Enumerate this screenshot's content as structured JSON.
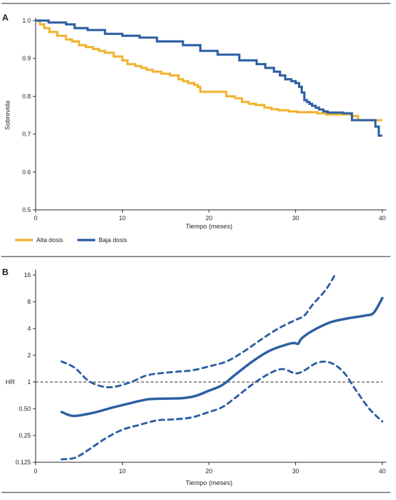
{
  "panels": {
    "a": {
      "letter": "A"
    },
    "b": {
      "letter": "B"
    }
  },
  "chart_data": [
    {
      "type": "line",
      "panel": "A",
      "xlabel": "Tiempo (meses)",
      "ylabel": "Sobrevida",
      "xlim": [
        0,
        40
      ],
      "ylim": [
        0.5,
        1.0
      ],
      "xticks": [
        0,
        10,
        20,
        30,
        40
      ],
      "yticks": [
        {
          "value": 1.0,
          "label": "1.0"
        },
        {
          "value": 0.9,
          "label": "0.9"
        },
        {
          "value": 0.8,
          "label": "0.8"
        },
        {
          "value": 0.7,
          "label": "0.7"
        },
        {
          "value": 0.6,
          "label": "0.6"
        },
        {
          "value": 0.5,
          "label": "0.5"
        }
      ],
      "grid": false,
      "legend_position": "bottom-left",
      "series": [
        {
          "name": "Alta dosis",
          "color": "#f0b432",
          "step": true,
          "x": [
            0,
            0.5,
            1,
            1.6,
            2.5,
            3.5,
            4.2,
            5,
            5.8,
            6.6,
            7.3,
            8,
            9,
            10,
            10.6,
            11.5,
            12.2,
            12.8,
            13.5,
            14.5,
            15.5,
            16.5,
            17,
            17.6,
            18.3,
            18.7,
            19,
            21,
            22,
            23,
            23.8,
            24.6,
            25.4,
            26.4,
            27.2,
            28,
            29.2,
            30.2,
            31.5,
            32.5,
            33.5,
            35,
            36.5,
            37.2,
            40
          ],
          "y": [
            1.0,
            0.99,
            0.98,
            0.97,
            0.96,
            0.95,
            0.945,
            0.935,
            0.93,
            0.925,
            0.92,
            0.915,
            0.905,
            0.895,
            0.885,
            0.88,
            0.875,
            0.87,
            0.865,
            0.86,
            0.855,
            0.845,
            0.84,
            0.835,
            0.83,
            0.825,
            0.812,
            0.812,
            0.8,
            0.795,
            0.785,
            0.78,
            0.777,
            0.77,
            0.766,
            0.763,
            0.76,
            0.758,
            0.758,
            0.755,
            0.752,
            0.752,
            0.748,
            0.737,
            0.737
          ]
        },
        {
          "name": "Baja dosis",
          "color": "#2d5fa4",
          "step": true,
          "x": [
            0,
            1.5,
            3.5,
            4.5,
            6,
            8,
            10,
            12,
            14,
            17,
            19,
            21,
            23.5,
            25.5,
            26.5,
            27.5,
            28.2,
            28.8,
            29.5,
            30,
            30.4,
            30.7,
            31,
            31.3,
            31.6,
            31.9,
            32.3,
            32.7,
            33.2,
            33.7,
            35.5,
            36.5,
            38.5,
            39.2,
            39.6,
            40
          ],
          "y": [
            1.0,
            0.995,
            0.99,
            0.98,
            0.975,
            0.965,
            0.96,
            0.955,
            0.945,
            0.935,
            0.92,
            0.91,
            0.895,
            0.885,
            0.875,
            0.865,
            0.855,
            0.845,
            0.84,
            0.835,
            0.825,
            0.81,
            0.79,
            0.785,
            0.78,
            0.775,
            0.77,
            0.765,
            0.76,
            0.757,
            0.755,
            0.737,
            0.737,
            0.72,
            0.696,
            0.696
          ]
        }
      ]
    },
    {
      "type": "line",
      "panel": "B",
      "xlabel": "Tiempo (meses)",
      "ylabel": "HR",
      "xlim": [
        0,
        40
      ],
      "ylim": [
        0.125,
        16
      ],
      "yscale": "log2",
      "xticks": [
        0,
        10,
        20,
        30,
        40
      ],
      "yticks": [
        {
          "value": 16,
          "label": "16"
        },
        {
          "value": 8,
          "label": "8"
        },
        {
          "value": 4,
          "label": "4"
        },
        {
          "value": 2,
          "label": "2"
        },
        {
          "value": 1,
          "label": "1"
        },
        {
          "value": 0.5,
          "label": "0.50"
        },
        {
          "value": 0.25,
          "label": "0.25"
        },
        {
          "value": 0.125,
          "label": "0.125"
        }
      ],
      "reference_line": {
        "y": 1,
        "style": "dashed",
        "color": "#231f20"
      },
      "grid": false,
      "series": [
        {
          "role": "estimate",
          "style": "solid",
          "color": "#2d5fa4",
          "x": [
            3,
            4,
            5,
            7,
            9,
            11,
            13,
            15,
            17,
            18.5,
            20,
            21.5,
            23,
            25,
            27,
            29,
            29.8,
            30.3,
            30.7,
            32,
            34,
            36,
            38,
            39,
            40
          ],
          "y": [
            0.46,
            0.42,
            0.42,
            0.46,
            0.52,
            0.58,
            0.64,
            0.65,
            0.66,
            0.7,
            0.8,
            0.92,
            1.2,
            1.7,
            2.25,
            2.65,
            2.75,
            2.7,
            3.1,
            3.8,
            4.7,
            5.2,
            5.6,
            6.0,
            8.8
          ]
        },
        {
          "role": "upper_ci",
          "style": "dashed",
          "color": "#2d5fa4",
          "x": [
            3,
            4.5,
            6,
            7.5,
            9,
            11,
            13,
            16,
            18,
            20,
            22,
            24,
            26,
            28,
            30,
            31,
            32,
            33.5,
            34.6
          ],
          "y": [
            1.7,
            1.45,
            1.05,
            0.9,
            0.88,
            1.0,
            1.2,
            1.3,
            1.35,
            1.5,
            1.7,
            2.2,
            3.0,
            4.0,
            5.0,
            5.6,
            7.5,
            11.0,
            16.5
          ]
        },
        {
          "role": "lower_ci",
          "style": "dashed",
          "color": "#2d5fa4",
          "x": [
            3,
            4.5,
            6,
            8,
            10,
            12,
            14,
            16,
            18,
            20,
            21.5,
            23,
            25,
            27,
            28.5,
            30,
            31,
            32.5,
            34,
            35.5,
            37,
            38.5,
            40
          ],
          "y": [
            0.135,
            0.14,
            0.17,
            0.23,
            0.29,
            0.33,
            0.37,
            0.38,
            0.4,
            0.46,
            0.52,
            0.66,
            0.94,
            1.25,
            1.4,
            1.25,
            1.35,
            1.65,
            1.65,
            1.3,
            0.8,
            0.5,
            0.36
          ]
        }
      ]
    }
  ]
}
